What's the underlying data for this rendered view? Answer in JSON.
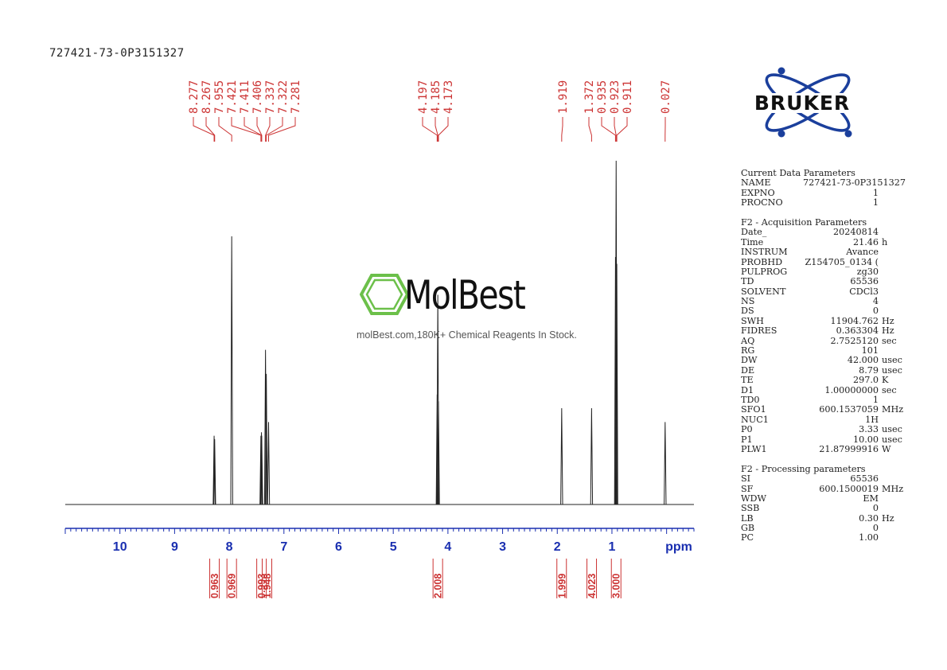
{
  "sample_id": "727421-73-0P3151327",
  "brand": {
    "name": "BRUKER",
    "color": "#1b3f9c"
  },
  "watermark": {
    "name": "MolBest",
    "tagline": "molBest.com,180K+ Chemical Reagents In Stock.",
    "icon": "benzene-ring-icon",
    "color": "#6cc04a"
  },
  "colors": {
    "peak_labels": "#cc3333",
    "axis": "#1a2fb0",
    "spectrum": "#222222"
  },
  "chart_data": {
    "type": "line",
    "xlabel": "ppm",
    "xlim": [
      11.0,
      -0.5
    ],
    "axis_reversed": true,
    "ticks": [
      10,
      9,
      8,
      7,
      6,
      5,
      4,
      3,
      2,
      1
    ],
    "peaks": [
      {
        "ppm": 8.277,
        "height": 0.2
      },
      {
        "ppm": 8.267,
        "height": 0.19
      },
      {
        "ppm": 7.955,
        "height": 0.78
      },
      {
        "ppm": 7.421,
        "height": 0.2
      },
      {
        "ppm": 7.411,
        "height": 0.21
      },
      {
        "ppm": 7.406,
        "height": 0.2
      },
      {
        "ppm": 7.337,
        "height": 0.45
      },
      {
        "ppm": 7.322,
        "height": 0.38
      },
      {
        "ppm": 7.281,
        "height": 0.24
      },
      {
        "ppm": 4.197,
        "height": 0.32
      },
      {
        "ppm": 4.185,
        "height": 0.61
      },
      {
        "ppm": 4.173,
        "height": 0.3
      },
      {
        "ppm": 1.919,
        "height": 0.28
      },
      {
        "ppm": 1.372,
        "height": 0.28
      },
      {
        "ppm": 0.935,
        "height": 0.72
      },
      {
        "ppm": 0.923,
        "height": 1.0
      },
      {
        "ppm": 0.911,
        "height": 0.7
      },
      {
        "ppm": 0.027,
        "height": 0.24
      }
    ],
    "peak_labels": [
      "8.277",
      "8.267",
      "7.955",
      "7.421",
      "7.411",
      "7.406",
      "7.337",
      "7.322",
      "7.281",
      "4.197",
      "4.185",
      "4.173",
      "1.919",
      "1.372",
      "0.935",
      "0.923",
      "0.911",
      "0.027"
    ],
    "integrals": [
      {
        "ppm": 8.27,
        "value": "0.963"
      },
      {
        "ppm": 7.955,
        "value": "0.969"
      },
      {
        "ppm": 7.41,
        "value": "0.993"
      },
      {
        "ppm": 7.31,
        "value": "1.948"
      },
      {
        "ppm": 4.185,
        "value": "2.008"
      },
      {
        "ppm": 1.92,
        "value": "1.999"
      },
      {
        "ppm": 1.37,
        "value": "4.023"
      },
      {
        "ppm": 0.923,
        "value": "3.000"
      }
    ]
  },
  "parameters": {
    "current": {
      "title": "Current Data Parameters",
      "rows": [
        {
          "k": "NAME",
          "v": "727421-73-0P3151327",
          "u": ""
        },
        {
          "k": "EXPNO",
          "v": "1",
          "u": ""
        },
        {
          "k": "PROCNO",
          "v": "1",
          "u": ""
        }
      ]
    },
    "acquisition": {
      "title": "F2 - Acquisition Parameters",
      "rows": [
        {
          "k": "Date_",
          "v": "20240814",
          "u": ""
        },
        {
          "k": "Time",
          "v": "21.46",
          "u": "h"
        },
        {
          "k": "INSTRUM",
          "v": "Avance",
          "u": ""
        },
        {
          "k": "PROBHD",
          "v": "Z154705_0134 (",
          "u": ""
        },
        {
          "k": "PULPROG",
          "v": "zg30",
          "u": ""
        },
        {
          "k": "TD",
          "v": "65536",
          "u": ""
        },
        {
          "k": "SOLVENT",
          "v": "CDCl3",
          "u": ""
        },
        {
          "k": "NS",
          "v": "4",
          "u": ""
        },
        {
          "k": "DS",
          "v": "0",
          "u": ""
        },
        {
          "k": "SWH",
          "v": "11904.762",
          "u": "Hz"
        },
        {
          "k": "FIDRES",
          "v": "0.363304",
          "u": "Hz"
        },
        {
          "k": "AQ",
          "v": "2.7525120",
          "u": "sec"
        },
        {
          "k": "RG",
          "v": "101",
          "u": ""
        },
        {
          "k": "DW",
          "v": "42.000",
          "u": "usec"
        },
        {
          "k": "DE",
          "v": "8.79",
          "u": "usec"
        },
        {
          "k": "TE",
          "v": "297.0",
          "u": "K"
        },
        {
          "k": "D1",
          "v": "1.00000000",
          "u": "sec"
        },
        {
          "k": "TD0",
          "v": "1",
          "u": ""
        },
        {
          "k": "SFO1",
          "v": "600.1537059",
          "u": "MHz"
        },
        {
          "k": "NUC1",
          "v": "1H",
          "u": ""
        },
        {
          "k": "P0",
          "v": "3.33",
          "u": "usec"
        },
        {
          "k": "P1",
          "v": "10.00",
          "u": "usec"
        },
        {
          "k": "PLW1",
          "v": "21.87999916",
          "u": "W"
        }
      ]
    },
    "processing": {
      "title": "F2 - Processing parameters",
      "rows": [
        {
          "k": "SI",
          "v": "65536",
          "u": ""
        },
        {
          "k": "SF",
          "v": "600.1500019",
          "u": "MHz"
        },
        {
          "k": "WDW",
          "v": "EM",
          "u": ""
        },
        {
          "k": "SSB",
          "v": "0",
          "u": ""
        },
        {
          "k": "LB",
          "v": "0.30",
          "u": "Hz"
        },
        {
          "k": "GB",
          "v": "0",
          "u": ""
        },
        {
          "k": "PC",
          "v": "1.00",
          "u": ""
        }
      ]
    }
  }
}
